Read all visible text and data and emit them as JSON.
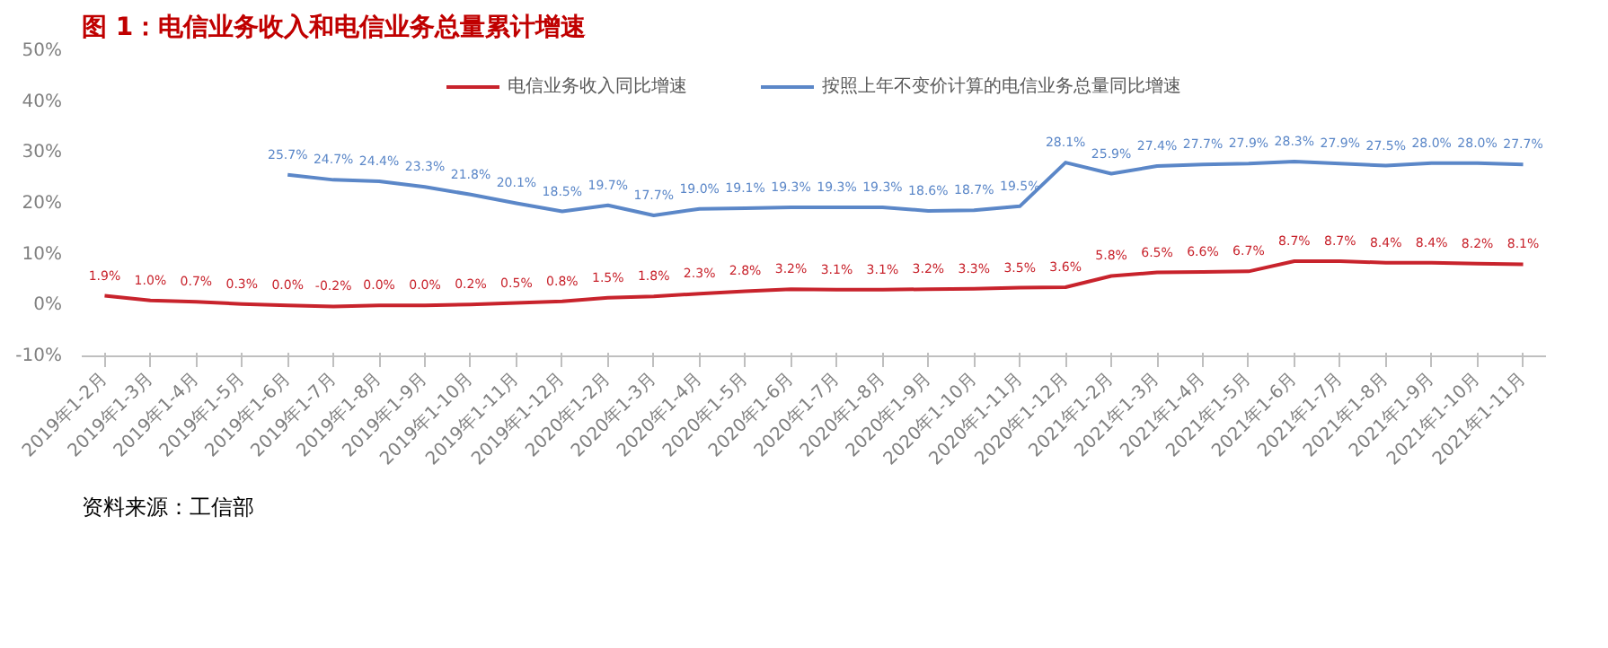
{
  "chart_data": {
    "type": "line",
    "title": "图 1：电信业务收入和电信业务总量累计增速",
    "categories": [
      "2019年1-2月",
      "2019年1-3月",
      "2019年1-4月",
      "2019年1-5月",
      "2019年1-6月",
      "2019年1-7月",
      "2019年1-8月",
      "2019年1-9月",
      "2019年1-10月",
      "2019年1-11月",
      "2019年1-12月",
      "2020年1-2月",
      "2020年1-3月",
      "2020年1-4月",
      "2020年1-5月",
      "2020年1-6月",
      "2020年1-7月",
      "2020年1-8月",
      "2020年1-9月",
      "2020年1-10月",
      "2020年1-11月",
      "2020年1-12月",
      "2021年1-2月",
      "2021年1-3月",
      "2021年1-4月",
      "2021年1-5月",
      "2021年1-6月",
      "2021年1-7月",
      "2021年1-8月",
      "2021年1-9月",
      "2021年1-10月",
      "2021年1-11月"
    ],
    "series": [
      {
        "name": "电信业务收入同比增速",
        "color": "#c8232c",
        "values": [
          1.9,
          1.0,
          0.7,
          0.3,
          0.0,
          -0.2,
          0.0,
          0.0,
          0.2,
          0.5,
          0.8,
          1.5,
          1.8,
          2.3,
          2.8,
          3.2,
          3.1,
          3.1,
          3.2,
          3.3,
          3.5,
          3.6,
          5.8,
          6.5,
          6.6,
          6.7,
          8.7,
          8.7,
          8.4,
          8.4,
          8.2,
          8.1
        ],
        "value_labels": [
          "1.9%",
          "1.0%",
          "0.7%",
          "0.3%",
          "0.0%",
          "-0.2%",
          "0.0%",
          "0.0%",
          "0.2%",
          "0.5%",
          "0.8%",
          "1.5%",
          "1.8%",
          "2.3%",
          "2.8%",
          "3.2%",
          "3.1%",
          "3.1%",
          "3.2%",
          "3.3%",
          "3.5%",
          "3.6%",
          "5.8%",
          "6.5%",
          "6.6%",
          "6.7%",
          "8.7%",
          "8.7%",
          "8.4%",
          "8.4%",
          "8.2%",
          "8.1%"
        ]
      },
      {
        "name": "按照上年不变价计算的电信业务总量同比增速",
        "color": "#5b87c8",
        "values": [
          null,
          null,
          null,
          null,
          25.7,
          24.7,
          24.4,
          23.3,
          21.8,
          20.1,
          18.5,
          19.7,
          17.7,
          19.0,
          19.1,
          19.3,
          19.3,
          19.3,
          18.6,
          18.7,
          19.5,
          28.1,
          25.9,
          27.4,
          27.7,
          27.9,
          28.3,
          27.9,
          27.5,
          28.0,
          28.0,
          27.7
        ],
        "value_labels": [
          null,
          null,
          null,
          null,
          "25.7%",
          "24.7%",
          "24.4%",
          "23.3%",
          "21.8%",
          "20.1%",
          "18.5%",
          "19.7%",
          "17.7%",
          "19.0%",
          "19.1%",
          "19.3%",
          "19.3%",
          "19.3%",
          "18.6%",
          "18.7%",
          "19.5%",
          "28.1%",
          "25.9%",
          "27.4%",
          "27.7%",
          "27.9%",
          "28.3%",
          "27.9%",
          "27.5%",
          "28.0%",
          "28.0%",
          "27.7%"
        ]
      }
    ],
    "ylim": [
      -10,
      50
    ],
    "yticks": [
      {
        "value": -10,
        "label": "-10%"
      },
      {
        "value": 0,
        "label": "0%"
      },
      {
        "value": 10,
        "label": "10%"
      },
      {
        "value": 20,
        "label": "20%"
      },
      {
        "value": 30,
        "label": "30%"
      },
      {
        "value": 40,
        "label": "40%"
      },
      {
        "value": 50,
        "label": "50%"
      }
    ],
    "grid": false,
    "legend": "top",
    "marker": "none",
    "line_style": "solid",
    "annotations": [
      "资料来源：工信部"
    ]
  }
}
